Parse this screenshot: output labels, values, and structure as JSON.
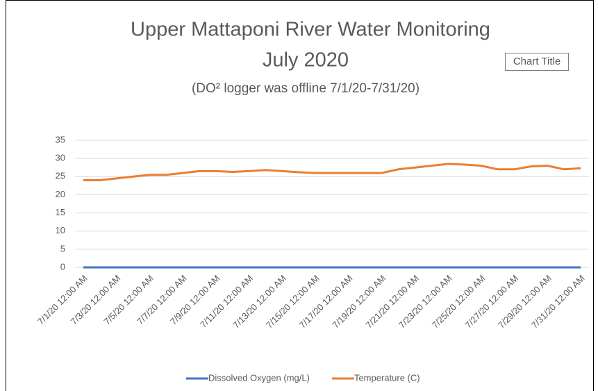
{
  "chart_data": {
    "type": "line",
    "title": "Upper Mattaponi River Water Monitoring",
    "subtitle": "July 2020",
    "annotations": [
      "(DO² logger was offline 7/1/20-7/31/20)",
      "Chart Title"
    ],
    "categories": [
      "7/1/20 12:00 AM",
      null,
      "7/3/20 12:00 AM",
      null,
      "7/5/20 12:00 AM",
      null,
      "7/7/20 12:00 AM",
      null,
      "7/9/20 12:00 AM",
      null,
      "7/11/20 12:00 AM",
      null,
      "7/13/20 12:00 AM",
      null,
      "7/15/20 12:00 AM",
      null,
      "7/17/20 12:00 AM",
      null,
      "7/19/20 12:00 AM",
      null,
      "7/21/20 12:00 AM",
      null,
      "7/23/20 12:00 AM",
      null,
      "7/25/20 12:00 AM",
      null,
      "7/27/20 12:00 AM",
      null,
      "7/29/20 12:00 AM",
      null,
      "7/31/20 12:00 AM"
    ],
    "series": [
      {
        "name": "Dissolved Oxygen (mg/L)",
        "color": "#4472c4",
        "values": [
          0,
          0,
          0,
          0,
          0,
          0,
          0,
          0,
          0,
          0,
          0,
          0,
          0,
          0,
          0,
          0,
          0,
          0,
          0,
          0,
          0,
          0,
          0,
          0,
          0,
          0,
          0,
          0,
          0,
          0,
          0
        ]
      },
      {
        "name": "Temperature (C)",
        "color": "#ed7d31",
        "values": [
          24,
          24,
          24.5,
          25,
          25.5,
          25.5,
          26,
          26.5,
          26.5,
          26.3,
          26.5,
          26.8,
          26.5,
          26.2,
          26,
          26,
          26,
          26,
          26,
          27,
          27.5,
          28,
          28.5,
          28.3,
          28,
          27,
          27,
          27.8,
          28,
          27,
          27.3
        ]
      }
    ],
    "ylim": [
      0,
      35
    ],
    "yticks": [
      0,
      5,
      10,
      15,
      20,
      25,
      30,
      35
    ],
    "grid": true,
    "legend": "bottom"
  }
}
